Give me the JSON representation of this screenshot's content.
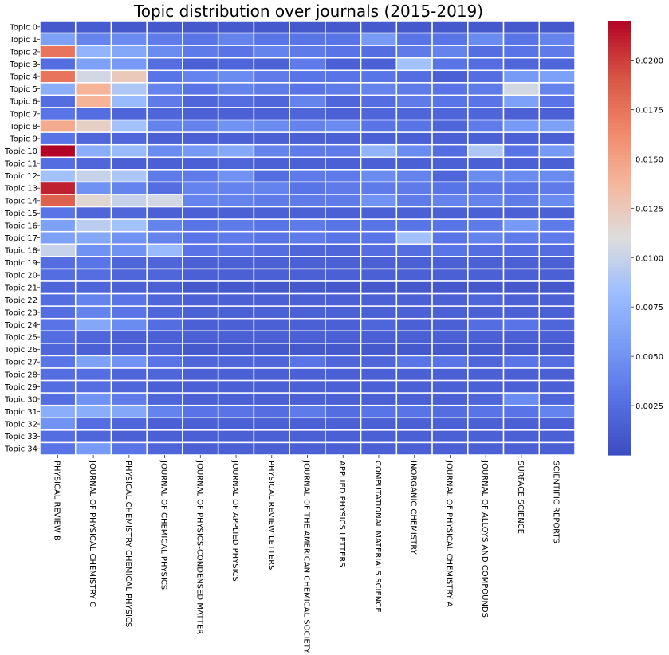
{
  "chart_data": {
    "type": "heatmap",
    "title": "Topic distribution over journals (2015-2019)",
    "xlabel": "",
    "ylabel": "",
    "rows": [
      "Topic 0",
      "Topic 1",
      "Topic 2",
      "Topic 3",
      "Topic 4",
      "Topic 5",
      "Topic 6",
      "Topic 7",
      "Topic 8",
      "Topic 9",
      "Topic 10",
      "Topic 11",
      "Topic 12",
      "Topic 13",
      "Topic 14",
      "Topic 15",
      "Topic 16",
      "Topic 17",
      "Topic 18",
      "Topic 19",
      "Topic 20",
      "Topic 21",
      "Topic 22",
      "Topic 23",
      "Topic 24",
      "Topic 25",
      "Topic 26",
      "Topic 27",
      "Topic 28",
      "Topic 29",
      "Topic 30",
      "Topic 31",
      "Topic 32",
      "Topic 33",
      "Topic 34"
    ],
    "columns": [
      "PHYSICAL REVIEW B",
      "JOURNAL OF PHYSICAL CHEMISTRY C",
      "PHYSICAL CHEMISTRY CHEMICAL PHYSICS",
      "JOURNAL OF CHEMICAL PHYSICS",
      "JOURNAL OF PHYSICS-CONDENSED MATTER",
      "JOURNAL OF APPLIED PHYSICS",
      "PHYSICAL REVIEW LETTERS",
      "JOURNAL OF THE AMERICAN CHEMICAL SOCIETY",
      "APPLIED PHYSICS LETTERS",
      "COMPUTATIONAL MATERIALS SCIENCE",
      "INORGANIC CHEMISTRY",
      "JOURNAL OF PHYSICAL CHEMISTRY A",
      "JOURNAL OF ALLOYS AND COMPOUNDS",
      "SURFACE SCIENCE",
      "SCIENTIFIC REPORTS"
    ],
    "values": [
      [
        0.001,
        0.0012,
        0.001,
        0.001,
        0.001,
        0.0011,
        0.001,
        0.001,
        0.001,
        0.0011,
        0.001,
        0.001,
        0.001,
        0.001,
        0.001
      ],
      [
        0.006,
        0.004,
        0.0045,
        0.0035,
        0.003,
        0.004,
        0.003,
        0.003,
        0.003,
        0.0055,
        0.003,
        0.003,
        0.0045,
        0.003,
        0.004
      ],
      [
        0.0175,
        0.0075,
        0.0065,
        0.0045,
        0.0035,
        0.003,
        0.004,
        0.0035,
        0.003,
        0.0025,
        0.0035,
        0.004,
        0.0025,
        0.003,
        0.0035
      ],
      [
        0.0025,
        0.006,
        0.0055,
        0.0025,
        0.0015,
        0.002,
        0.0015,
        0.0035,
        0.0015,
        0.0015,
        0.0085,
        0.003,
        0.0025,
        0.002,
        0.002
      ],
      [
        0.0175,
        0.0105,
        0.0125,
        0.003,
        0.004,
        0.0045,
        0.0035,
        0.003,
        0.003,
        0.003,
        0.0025,
        0.0015,
        0.0025,
        0.0055,
        0.006
      ],
      [
        0.007,
        0.014,
        0.009,
        0.004,
        0.003,
        0.004,
        0.0035,
        0.003,
        0.0035,
        0.004,
        0.0035,
        0.003,
        0.0035,
        0.0105,
        0.004
      ],
      [
        0.0025,
        0.014,
        0.008,
        0.0035,
        0.002,
        0.0025,
        0.002,
        0.004,
        0.002,
        0.0025,
        0.0035,
        0.003,
        0.003,
        0.006,
        0.003
      ],
      [
        0.003,
        0.0025,
        0.002,
        0.002,
        0.0015,
        0.0015,
        0.0015,
        0.002,
        0.0015,
        0.002,
        0.002,
        0.002,
        0.002,
        0.0015,
        0.0015
      ],
      [
        0.0145,
        0.012,
        0.0085,
        0.004,
        0.004,
        0.005,
        0.0045,
        0.004,
        0.0045,
        0.003,
        0.003,
        0.002,
        0.0035,
        0.0055,
        0.006
      ],
      [
        0.003,
        0.002,
        0.002,
        0.0015,
        0.0015,
        0.0015,
        0.0015,
        0.0015,
        0.0015,
        0.0015,
        0.0015,
        0.0015,
        0.0015,
        0.0015,
        0.0015
      ],
      [
        0.022,
        0.007,
        0.008,
        0.0045,
        0.0055,
        0.0065,
        0.004,
        0.0035,
        0.0035,
        0.0075,
        0.0045,
        0.0025,
        0.009,
        0.003,
        0.0055
      ],
      [
        0.0025,
        0.002,
        0.0015,
        0.0015,
        0.0015,
        0.002,
        0.0015,
        0.0015,
        0.0015,
        0.0015,
        0.0015,
        0.0015,
        0.0015,
        0.0015,
        0.0015
      ],
      [
        0.0085,
        0.01,
        0.009,
        0.0035,
        0.0035,
        0.005,
        0.0025,
        0.0035,
        0.0035,
        0.0045,
        0.004,
        0.002,
        0.0045,
        0.0045,
        0.0045
      ],
      [
        0.021,
        0.005,
        0.004,
        0.0025,
        0.004,
        0.004,
        0.004,
        0.003,
        0.0035,
        0.0035,
        0.0035,
        0.003,
        0.003,
        0.003,
        0.0035
      ],
      [
        0.0185,
        0.0115,
        0.01,
        0.0105,
        0.004,
        0.004,
        0.0035,
        0.0035,
        0.0035,
        0.005,
        0.0035,
        0.004,
        0.004,
        0.0035,
        0.0045
      ],
      [
        0.003,
        0.002,
        0.002,
        0.0015,
        0.0015,
        0.0015,
        0.0015,
        0.0015,
        0.0015,
        0.0015,
        0.0015,
        0.0015,
        0.0015,
        0.0015,
        0.0015
      ],
      [
        0.006,
        0.0095,
        0.0085,
        0.004,
        0.003,
        0.0035,
        0.003,
        0.0035,
        0.003,
        0.003,
        0.003,
        0.003,
        0.0035,
        0.0055,
        0.0035
      ],
      [
        0.006,
        0.0065,
        0.005,
        0.004,
        0.003,
        0.0035,
        0.003,
        0.0035,
        0.003,
        0.003,
        0.0085,
        0.003,
        0.004,
        0.0035,
        0.0035
      ],
      [
        0.01,
        0.005,
        0.005,
        0.008,
        0.003,
        0.003,
        0.0025,
        0.002,
        0.002,
        0.0025,
        0.0025,
        0.003,
        0.0025,
        0.0025,
        0.0025
      ],
      [
        0.0025,
        0.003,
        0.002,
        0.002,
        0.0015,
        0.0015,
        0.0015,
        0.0015,
        0.0015,
        0.0015,
        0.0015,
        0.0015,
        0.0015,
        0.0015,
        0.0015
      ],
      [
        0.0025,
        0.0025,
        0.002,
        0.002,
        0.0015,
        0.0015,
        0.0015,
        0.0015,
        0.0015,
        0.0015,
        0.0015,
        0.0015,
        0.0015,
        0.0015,
        0.0015
      ],
      [
        0.002,
        0.002,
        0.0015,
        0.0015,
        0.001,
        0.001,
        0.001,
        0.001,
        0.001,
        0.001,
        0.001,
        0.001,
        0.001,
        0.001,
        0.001
      ],
      [
        0.0025,
        0.004,
        0.003,
        0.002,
        0.0015,
        0.0015,
        0.0015,
        0.0015,
        0.0015,
        0.0015,
        0.0015,
        0.0015,
        0.002,
        0.0015,
        0.0015
      ],
      [
        0.0025,
        0.004,
        0.003,
        0.002,
        0.0015,
        0.0015,
        0.0015,
        0.0015,
        0.0015,
        0.0015,
        0.0015,
        0.0015,
        0.0015,
        0.0015,
        0.0015
      ],
      [
        0.003,
        0.0065,
        0.0045,
        0.0025,
        0.0015,
        0.0015,
        0.0015,
        0.0015,
        0.0015,
        0.002,
        0.0015,
        0.0015,
        0.0025,
        0.003,
        0.002
      ],
      [
        0.0025,
        0.002,
        0.0015,
        0.0015,
        0.0015,
        0.0015,
        0.0015,
        0.0015,
        0.0015,
        0.0015,
        0.0015,
        0.0015,
        0.0015,
        0.0015,
        0.0015
      ],
      [
        0.002,
        0.0015,
        0.0015,
        0.0015,
        0.001,
        0.001,
        0.001,
        0.001,
        0.001,
        0.001,
        0.001,
        0.001,
        0.001,
        0.001,
        0.001
      ],
      [
        0.003,
        0.006,
        0.005,
        0.003,
        0.002,
        0.002,
        0.002,
        0.003,
        0.002,
        0.002,
        0.003,
        0.003,
        0.002,
        0.003,
        0.0025
      ],
      [
        0.0025,
        0.0025,
        0.002,
        0.002,
        0.0015,
        0.0015,
        0.0015,
        0.0015,
        0.0015,
        0.0015,
        0.0015,
        0.0015,
        0.0015,
        0.0015,
        0.0015
      ],
      [
        0.0025,
        0.0025,
        0.002,
        0.0015,
        0.0015,
        0.0015,
        0.0015,
        0.0015,
        0.0015,
        0.0015,
        0.0015,
        0.0015,
        0.0015,
        0.0015,
        0.0015
      ],
      [
        0.0025,
        0.005,
        0.0035,
        0.002,
        0.0015,
        0.0015,
        0.0015,
        0.0015,
        0.0015,
        0.0015,
        0.0015,
        0.0015,
        0.002,
        0.0045,
        0.002
      ],
      [
        0.007,
        0.007,
        0.0065,
        0.004,
        0.003,
        0.003,
        0.0025,
        0.0035,
        0.0025,
        0.003,
        0.003,
        0.0025,
        0.003,
        0.003,
        0.004
      ],
      [
        0.005,
        0.0025,
        0.002,
        0.0015,
        0.0015,
        0.0015,
        0.0015,
        0.0015,
        0.0015,
        0.0015,
        0.0015,
        0.0015,
        0.0015,
        0.0015,
        0.0015
      ],
      [
        0.0025,
        0.002,
        0.0015,
        0.0015,
        0.0015,
        0.0015,
        0.0015,
        0.0015,
        0.0015,
        0.0015,
        0.0015,
        0.0015,
        0.0015,
        0.0015,
        0.0015
      ],
      [
        0.003,
        0.0055,
        0.003,
        0.002,
        0.0015,
        0.0015,
        0.0015,
        0.0015,
        0.0015,
        0.0015,
        0.0015,
        0.0015,
        0.0015,
        0.0015,
        0.0015
      ]
    ],
    "colormap": "coolwarm",
    "vmin": 0.0,
    "vmax": 0.022,
    "colorbar": {
      "ticks": [
        0.0025,
        0.005,
        0.0075,
        0.01,
        0.0125,
        0.015,
        0.0175,
        0.02
      ],
      "tick_labels": [
        "0.0025",
        "0.0050",
        "0.0075",
        "0.0100",
        "0.0125",
        "0.0150",
        "0.0175",
        "0.0200"
      ]
    },
    "colors": {
      "cold": "#3b4cc0",
      "neutral": "#dddddd",
      "hot": "#b40426",
      "gridline": "#ffffff"
    }
  }
}
